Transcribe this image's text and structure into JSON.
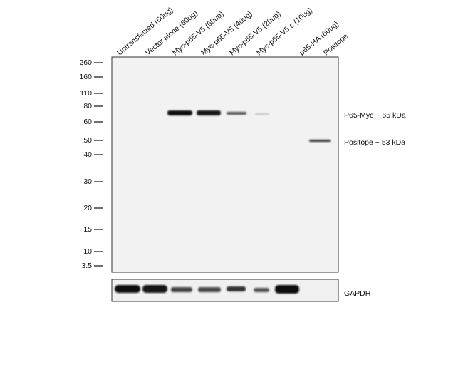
{
  "lanes": [
    "Untransfected (60ug)",
    "Vector alone (60ug)",
    "Myc-p65-V5 (60ug)",
    "Myc-p65-V5 (40ug)",
    "Myc-p65-V5 (20ug)",
    "Myc-p65-V5 c (10ug)",
    "p65-HA (60ug)",
    "Positope"
  ],
  "markers": [
    "260",
    "160",
    "110",
    "80",
    "60",
    "50",
    "40",
    "30",
    "20",
    "15",
    "10",
    "3.5"
  ],
  "annotations": [
    "P65-Myc ~ 65 kDa",
    "Positope ~ 53 kDa",
    "GAPDH"
  ]
}
